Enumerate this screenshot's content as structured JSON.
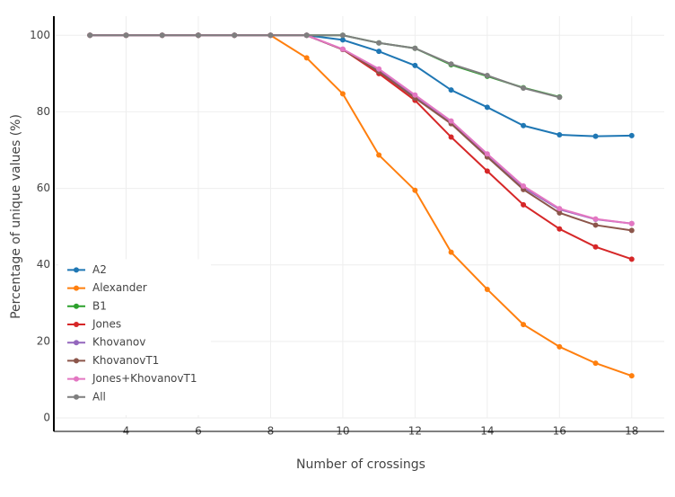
{
  "chart_data": {
    "type": "line",
    "x_label": "Number of crossings",
    "y_label": "Percentage of unique values (%)",
    "x": [
      3,
      4,
      5,
      6,
      7,
      8,
      9,
      10,
      11,
      12,
      13,
      14,
      15,
      16,
      17,
      18
    ],
    "xlim": [
      2,
      18.9
    ],
    "xticks": [
      4,
      6,
      8,
      10,
      12,
      14,
      16,
      18
    ],
    "ylim": [
      0,
      105
    ],
    "yticks": [
      0,
      20,
      40,
      60,
      80,
      100
    ],
    "grid": true,
    "legend_position": "lower left",
    "series": [
      {
        "name": "A2",
        "color": "#1f77b4",
        "values": [
          100,
          100,
          100,
          100,
          100,
          100,
          100,
          98.8,
          95.8,
          92.1,
          85.7,
          81.2,
          76.4,
          74.0,
          73.6,
          73.8
        ]
      },
      {
        "name": "Alexander",
        "color": "#ff7f0e",
        "values": [
          100,
          100,
          100,
          100,
          100,
          100,
          94.1,
          84.7,
          68.7,
          59.5,
          43.3,
          33.6,
          24.4,
          18.6,
          14.3,
          11.0
        ]
      },
      {
        "name": "B1",
        "color": "#2ca02c",
        "values": [
          100,
          100,
          100,
          100,
          100,
          100,
          100,
          100,
          98.0,
          96.6,
          92.3,
          89.3,
          86.3,
          83.9,
          null,
          null
        ]
      },
      {
        "name": "Jones",
        "color": "#d62728",
        "values": [
          100,
          100,
          100,
          100,
          100,
          100,
          100,
          96.3,
          90.0,
          83.0,
          73.4,
          64.5,
          55.7,
          49.4,
          44.7,
          41.5
        ]
      },
      {
        "name": "Khovanov",
        "color": "#9467bd",
        "values": [
          100,
          100,
          100,
          100,
          100,
          100,
          100,
          96.3,
          90.8,
          84.0,
          77.1,
          68.6,
          60.2,
          54.5,
          51.9,
          50.8
        ]
      },
      {
        "name": "KhovanovT1",
        "color": "#8c564b",
        "values": [
          100,
          100,
          100,
          100,
          100,
          100,
          100,
          96.3,
          90.5,
          83.6,
          76.9,
          68.2,
          59.7,
          53.6,
          50.4,
          49.0
        ]
      },
      {
        "name": "Jones+KhovanovT1",
        "color": "#e377c2",
        "values": [
          100,
          100,
          100,
          100,
          100,
          100,
          100,
          96.4,
          91.2,
          84.4,
          77.6,
          69.0,
          60.6,
          54.7,
          52.0,
          50.8
        ]
      },
      {
        "name": "All",
        "color": "#7f7f7f",
        "values": [
          100,
          100,
          100,
          100,
          100,
          100,
          100,
          100,
          98.0,
          96.6,
          92.5,
          89.5,
          86.2,
          83.8,
          null,
          null
        ]
      }
    ]
  }
}
